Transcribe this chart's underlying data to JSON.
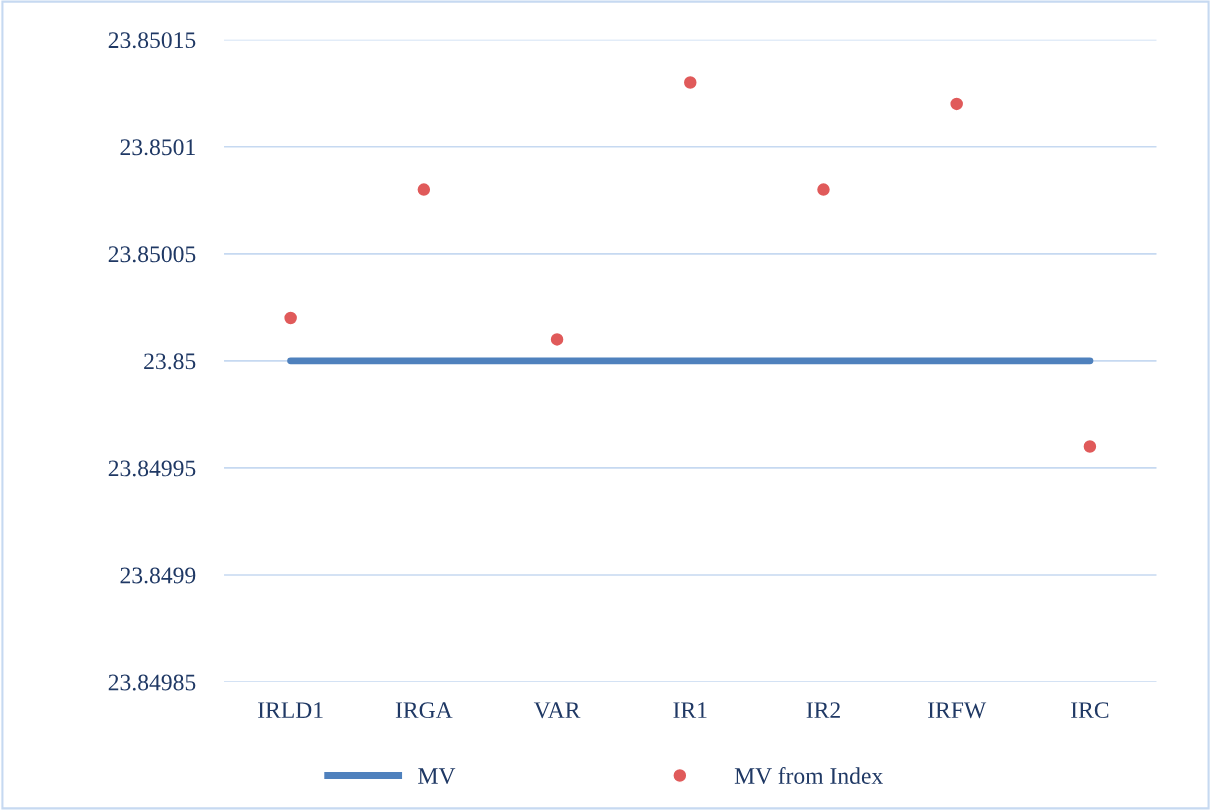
{
  "chart_data": {
    "type": "line",
    "categories": [
      "IRLD1",
      "IRGA",
      "VAR",
      "IR1",
      "IR2",
      "IRFW",
      "IRC"
    ],
    "series": [
      {
        "name": "MV",
        "color": "#4f81bd",
        "values": [
          23.85,
          23.85,
          23.85,
          23.85,
          23.85,
          23.85,
          23.85
        ],
        "marker": "none"
      },
      {
        "name": "MV from Index",
        "type": "scatter",
        "color": "#e05a5a",
        "values": [
          23.85002,
          23.85008,
          23.85001,
          23.85013,
          23.85008,
          23.85012,
          23.84996
        ],
        "marker": "circle"
      }
    ],
    "ylim": [
      23.84985,
      23.85015
    ],
    "yticks": [
      23.84985,
      23.8499,
      23.84995,
      23.85,
      23.85005,
      23.8501,
      23.85015
    ],
    "grid": "y",
    "legend": "bottom"
  }
}
